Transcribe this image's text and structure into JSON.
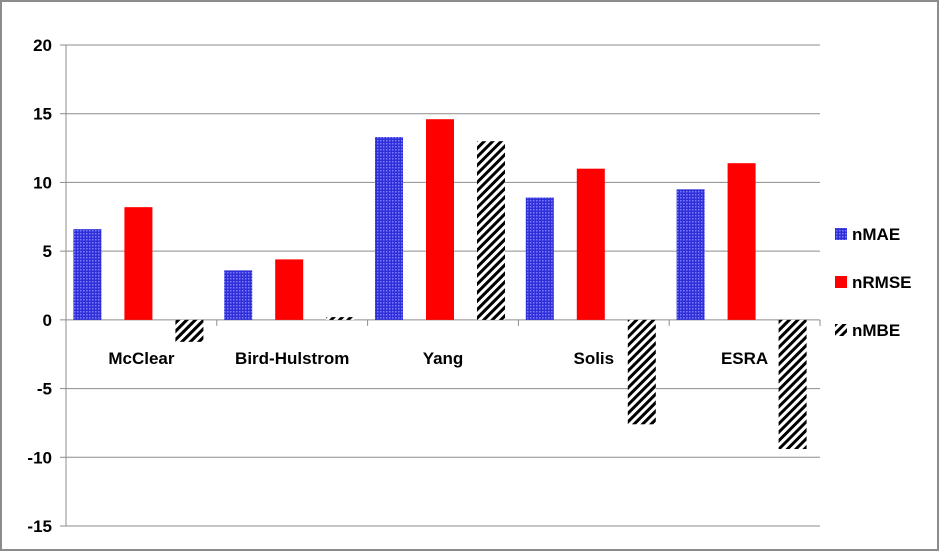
{
  "chart_data": {
    "type": "bar",
    "categories": [
      "McClear",
      "Bird-Hulstrom",
      "Yang",
      "Solis",
      "ESRA"
    ],
    "series": [
      {
        "name": "nMAE",
        "values": [
          6.6,
          3.6,
          13.3,
          8.9,
          9.5
        ],
        "color": "#3c3cff",
        "pattern": "dotted-blue"
      },
      {
        "name": "nRMSE",
        "values": [
          8.2,
          4.4,
          14.6,
          11.0,
          11.4
        ],
        "color": "#ff0000",
        "pattern": "solid"
      },
      {
        "name": "nMBE",
        "values": [
          -1.6,
          0.2,
          13.0,
          -7.6,
          -9.4
        ],
        "color": "#000000",
        "pattern": "diagonal-hatch"
      }
    ],
    "y_ticks": [
      "20",
      "15",
      "10",
      "5",
      "0",
      "-5",
      "-10",
      "-15"
    ],
    "ylim": [
      -15,
      20
    ],
    "grid": true,
    "legend_position": "right"
  }
}
